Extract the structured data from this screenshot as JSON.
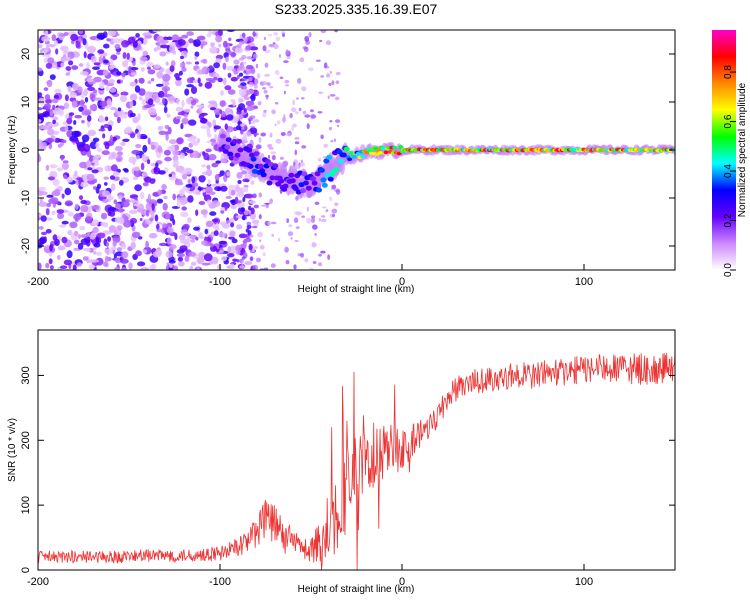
{
  "title": "S233.2025.335.16.39.E07",
  "chart_data": [
    {
      "type": "heatmap",
      "name": "spectrogram",
      "xlabel": "Height of straight line (km)",
      "ylabel": "Frequency (Hz)",
      "xlim": [
        -200,
        150
      ],
      "ylim": [
        -25,
        25
      ],
      "xticks": [
        -200,
        -100,
        0,
        100
      ],
      "xtick_labels": [
        "-200",
        "-100",
        "0",
        "100"
      ],
      "yticks": [
        -20,
        -10,
        0,
        10,
        20
      ],
      "ytick_labels": [
        "-20",
        "-10",
        "0",
        "10",
        "20"
      ],
      "colorbar": {
        "label": "Normalized spectral amplitude",
        "range": [
          0,
          0.97
        ],
        "ticks": [
          0,
          0.2,
          0.4,
          0.6,
          0.8
        ],
        "tick_labels": [
          "0.0",
          "0.2",
          "0.4",
          "0.6",
          "0.8"
        ],
        "colormap": [
          "#ffffff",
          "#cc88ff",
          "#6600ff",
          "#0000ff",
          "#00ffff",
          "#00ff00",
          "#ffff00",
          "#ff8800",
          "#ff0000",
          "#ff00cc"
        ]
      },
      "signal_track": {
        "x": [
          -100,
          -90,
          -80,
          -70,
          -60,
          -50,
          -45,
          -40,
          -35,
          -30,
          -25,
          -20,
          -15,
          -10,
          -5,
          0,
          10,
          20,
          40,
          60,
          80,
          100,
          120,
          150
        ],
        "freq": [
          2,
          -0.5,
          -3,
          -5,
          -6.5,
          -7.5,
          -6,
          -4,
          -2.5,
          -1.5,
          -1,
          -0.5,
          -0.3,
          -0.2,
          -0.1,
          0,
          0,
          0,
          0,
          0,
          0,
          0,
          0,
          0
        ],
        "amplitude": [
          0.25,
          0.3,
          0.35,
          0.3,
          0.3,
          0.35,
          0.45,
          0.4,
          0.55,
          0.6,
          0.65,
          0.75,
          0.8,
          0.85,
          0.85,
          0.9,
          0.85,
          0.8,
          0.85,
          0.9,
          0.85,
          0.9,
          0.85,
          0.8
        ]
      },
      "noise_region": {
        "x_from": -200,
        "x_to": -90,
        "amplitude_range": [
          0.05,
          0.3
        ]
      }
    },
    {
      "type": "line",
      "name": "snr",
      "xlabel": "Height of straight line (km)",
      "ylabel": "SNR (10 * v/v)",
      "xlim": [
        -200,
        150
      ],
      "ylim": [
        0,
        370
      ],
      "xticks": [
        -200,
        -100,
        0,
        100
      ],
      "xtick_labels": [
        "-200",
        "-100",
        "0",
        "100"
      ],
      "yticks": [
        0,
        100,
        200,
        300
      ],
      "ytick_labels": [
        "0",
        "100",
        "200",
        "300"
      ],
      "color": "#ee3333",
      "series": [
        {
          "name": "SNR",
          "x": [
            -200,
            -180,
            -160,
            -140,
            -120,
            -100,
            -90,
            -80,
            -75,
            -70,
            -65,
            -60,
            -55,
            -50,
            -45,
            -40,
            -35,
            -30,
            -25,
            -20,
            -15,
            -10,
            -5,
            0,
            5,
            10,
            15,
            20,
            25,
            30,
            40,
            50,
            60,
            70,
            80,
            90,
            100,
            110,
            120,
            130,
            140,
            150
          ],
          "values": [
            20,
            20,
            20,
            22,
            22,
            25,
            35,
            60,
            80,
            70,
            50,
            45,
            35,
            30,
            40,
            70,
            100,
            130,
            150,
            160,
            170,
            180,
            185,
            190,
            195,
            210,
            225,
            240,
            265,
            280,
            290,
            295,
            300,
            300,
            305,
            305,
            310,
            310,
            310,
            310,
            310,
            310
          ],
          "noise_amplitude": [
            10,
            10,
            10,
            10,
            10,
            12,
            15,
            25,
            30,
            30,
            25,
            20,
            18,
            20,
            40,
            60,
            70,
            70,
            60,
            55,
            50,
            45,
            40,
            35,
            30,
            25,
            22,
            20,
            20,
            20,
            20,
            20,
            20,
            22,
            22,
            22,
            22,
            22,
            22,
            25,
            25,
            25
          ]
        }
      ]
    }
  ]
}
